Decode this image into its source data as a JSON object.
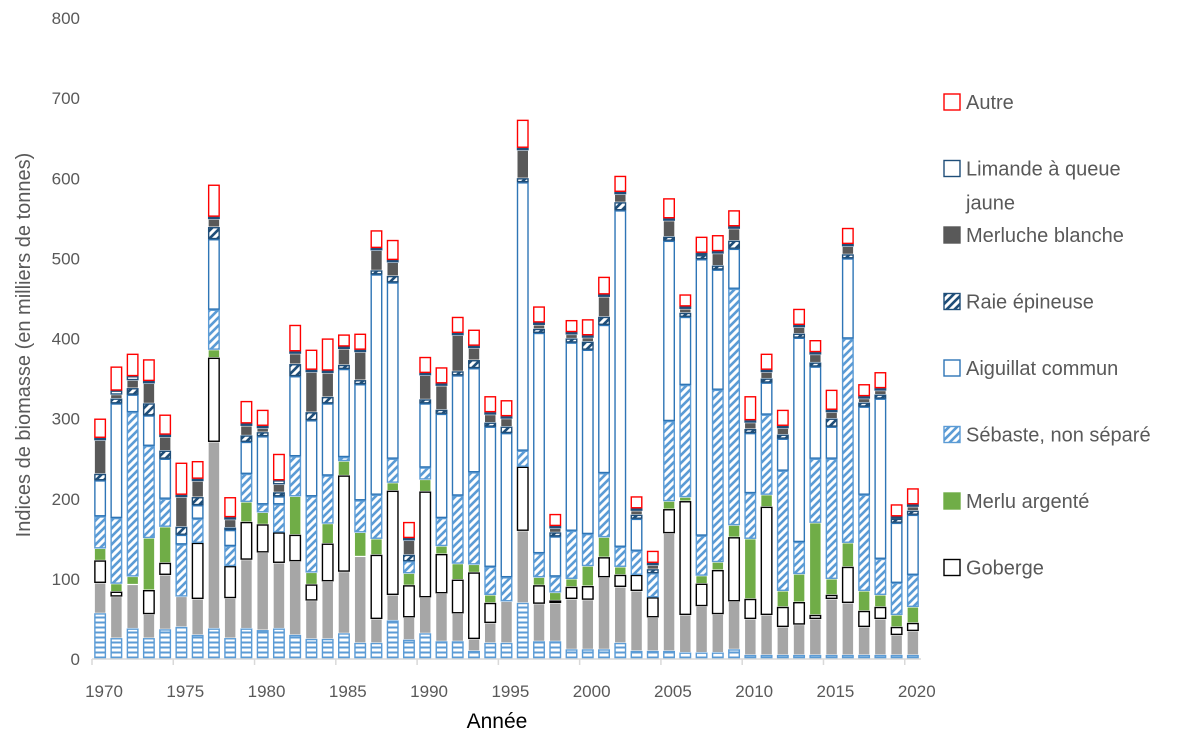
{
  "chart_data": {
    "type": "bar",
    "stacked": true,
    "xlabel": "Année",
    "ylabel": "Indices de biomasse (en milliers de tonnes)",
    "ylim": [
      0,
      800
    ],
    "yticks": [
      "0",
      "100",
      "200",
      "300",
      "400",
      "500",
      "600",
      "700",
      "800"
    ],
    "x_tick_labels": [
      "1970",
      "1975",
      "1980",
      "1985",
      "1990",
      "1995",
      "2000",
      "2005",
      "2010",
      "2015",
      "2020"
    ],
    "legend_position": "right",
    "grid": false,
    "categories": [
      1970,
      1971,
      1972,
      1973,
      1974,
      1975,
      1976,
      1977,
      1978,
      1979,
      1980,
      1981,
      1982,
      1983,
      1984,
      1985,
      1986,
      1987,
      1988,
      1989,
      1990,
      1991,
      1992,
      1993,
      1994,
      1995,
      1996,
      1997,
      1998,
      1999,
      2000,
      2001,
      2002,
      2003,
      2004,
      2005,
      2006,
      2007,
      2008,
      2009,
      2010,
      2011,
      2012,
      2013,
      2014,
      2015,
      2016,
      2017,
      2018,
      2019,
      2020
    ],
    "series": [
      {
        "name": "Série non légendée (hachures horizontales)",
        "legend": false,
        "color": "#5b9bd5",
        "pattern": "hlines",
        "values": [
          57,
          26,
          38,
          26,
          37,
          40,
          30,
          38,
          26,
          38,
          36,
          38,
          30,
          25,
          25,
          32,
          20,
          20,
          48,
          24,
          32,
          22,
          22,
          10,
          20,
          20,
          70,
          22,
          22,
          12,
          12,
          12,
          20,
          10,
          10,
          10,
          8,
          8,
          8,
          12,
          5,
          5,
          5,
          5,
          5,
          5,
          5,
          5,
          5,
          5,
          5
        ]
      },
      {
        "name": "Série non légendée (gris)",
        "legend": false,
        "color": "#a6a6a6",
        "pattern": "solid",
        "values": [
          38,
          52,
          55,
          30,
          68,
          38,
          45,
          233,
          50,
          86,
          97,
          82,
          92,
          48,
          72,
          77,
          108,
          30,
          32,
          28,
          45,
          60,
          35,
          15,
          25,
          52,
          90,
          47,
          48,
          63,
          62,
          90,
          70,
          75,
          42,
          147,
          47,
          58,
          48,
          60,
          45,
          50,
          35,
          38,
          45,
          70,
          65,
          35,
          45,
          25,
          30
        ]
      },
      {
        "name": "Goberge",
        "legend": true,
        "color": "#000000",
        "pattern": "outline",
        "values": [
          28,
          6,
          0,
          30,
          15,
          0,
          70,
          105,
          40,
          47,
          35,
          38,
          33,
          20,
          47,
          120,
          0,
          80,
          130,
          40,
          132,
          49,
          42,
          83,
          25,
          0,
          80,
          23,
          3,
          15,
          17,
          25,
          15,
          20,
          25,
          30,
          142,
          28,
          55,
          80,
          25,
          135,
          25,
          28,
          5,
          5,
          45,
          20,
          15,
          10,
          10
        ]
      },
      {
        "name": "Merlu argenté",
        "legend": true,
        "color": "#70ad47",
        "pattern": "solid",
        "values": [
          15,
          10,
          10,
          65,
          45,
          0,
          0,
          10,
          0,
          25,
          15,
          0,
          48,
          15,
          25,
          18,
          30,
          20,
          10,
          15,
          15,
          10,
          20,
          10,
          10,
          0,
          0,
          10,
          10,
          10,
          25,
          25,
          10,
          0,
          0,
          10,
          5,
          10,
          10,
          15,
          75,
          15,
          20,
          35,
          115,
          20,
          30,
          25,
          15,
          15,
          20
        ]
      },
      {
        "name": "Sébaste, non séparé",
        "legend": true,
        "color": "#5b9bd5",
        "pattern": "diagonal",
        "values": [
          40,
          82,
          205,
          115,
          35,
          65,
          30,
          50,
          25,
          35,
          10,
          35,
          50,
          95,
          60,
          5,
          40,
          55,
          30,
          15,
          15,
          35,
          85,
          115,
          35,
          30,
          20,
          30,
          20,
          60,
          40,
          80,
          25,
          30,
          30,
          100,
          140,
          50,
          215,
          295,
          57,
          100,
          150,
          40,
          80,
          150,
          255,
          120,
          45,
          40,
          40
        ]
      },
      {
        "name": "Aiguillat commun",
        "legend": true,
        "color": "#2e75b6",
        "pattern": "outline",
        "values": [
          45,
          143,
          22,
          38,
          50,
          12,
          17,
          88,
          20,
          40,
          85,
          10,
          100,
          95,
          90,
          110,
          145,
          275,
          220,
          0,
          80,
          130,
          150,
          130,
          175,
          180,
          335,
          275,
          50,
          235,
          230,
          185,
          420,
          40,
          0,
          225,
          85,
          345,
          150,
          50,
          75,
          40,
          40,
          255,
          115,
          40,
          100,
          110,
          200,
          75,
          75
        ]
      },
      {
        "name": "Raie épineuse",
        "legend": true,
        "color": "#1f4e79",
        "pattern": "diagonal",
        "values": [
          8,
          6,
          8,
          15,
          10,
          10,
          10,
          15,
          3,
          8,
          5,
          5,
          15,
          10,
          8,
          5,
          5,
          5,
          8,
          8,
          5,
          5,
          5,
          10,
          5,
          8,
          5,
          5,
          5,
          5,
          10,
          10,
          10,
          5,
          5,
          5,
          5,
          5,
          5,
          10,
          5,
          5,
          5,
          5,
          5,
          10,
          5,
          5,
          5,
          5,
          5
        ]
      },
      {
        "name": "Merluche blanche",
        "legend": true,
        "color": "#595959",
        "pattern": "solid",
        "values": [
          42,
          5,
          10,
          25,
          17,
          37,
          20,
          10,
          10,
          12,
          5,
          10,
          13,
          50,
          30,
          20,
          35,
          25,
          17,
          18,
          30,
          30,
          45,
          15,
          10,
          10,
          35,
          5,
          5,
          5,
          5,
          25,
          10,
          5,
          5,
          20,
          5,
          0,
          15,
          15,
          8,
          8,
          8,
          8,
          10,
          8,
          10,
          5,
          5,
          0,
          5
        ]
      },
      {
        "name": "Limande à queue jaune",
        "legend": true,
        "color": "#1f4e79",
        "pattern": "outline",
        "values": [
          3,
          5,
          5,
          3,
          3,
          3,
          3,
          3,
          3,
          3,
          3,
          5,
          3,
          3,
          3,
          3,
          3,
          3,
          3,
          3,
          3,
          3,
          3,
          3,
          3,
          3,
          3,
          3,
          3,
          3,
          3,
          3,
          3,
          3,
          3,
          3,
          3,
          3,
          3,
          3,
          3,
          3,
          3,
          3,
          3,
          3,
          3,
          3,
          3,
          3,
          3
        ]
      },
      {
        "name": "Autre",
        "legend": true,
        "color": "#ff0000",
        "pattern": "outline",
        "values": [
          24,
          30,
          28,
          27,
          25,
          40,
          22,
          40,
          25,
          28,
          20,
          33,
          33,
          25,
          40,
          15,
          20,
          22,
          25,
          20,
          20,
          20,
          20,
          20,
          20,
          20,
          35,
          20,
          15,
          15,
          20,
          22,
          20,
          15,
          15,
          25,
          15,
          20,
          20,
          20,
          30,
          20,
          20,
          20,
          15,
          25,
          20,
          15,
          20,
          15,
          20
        ]
      }
    ]
  }
}
